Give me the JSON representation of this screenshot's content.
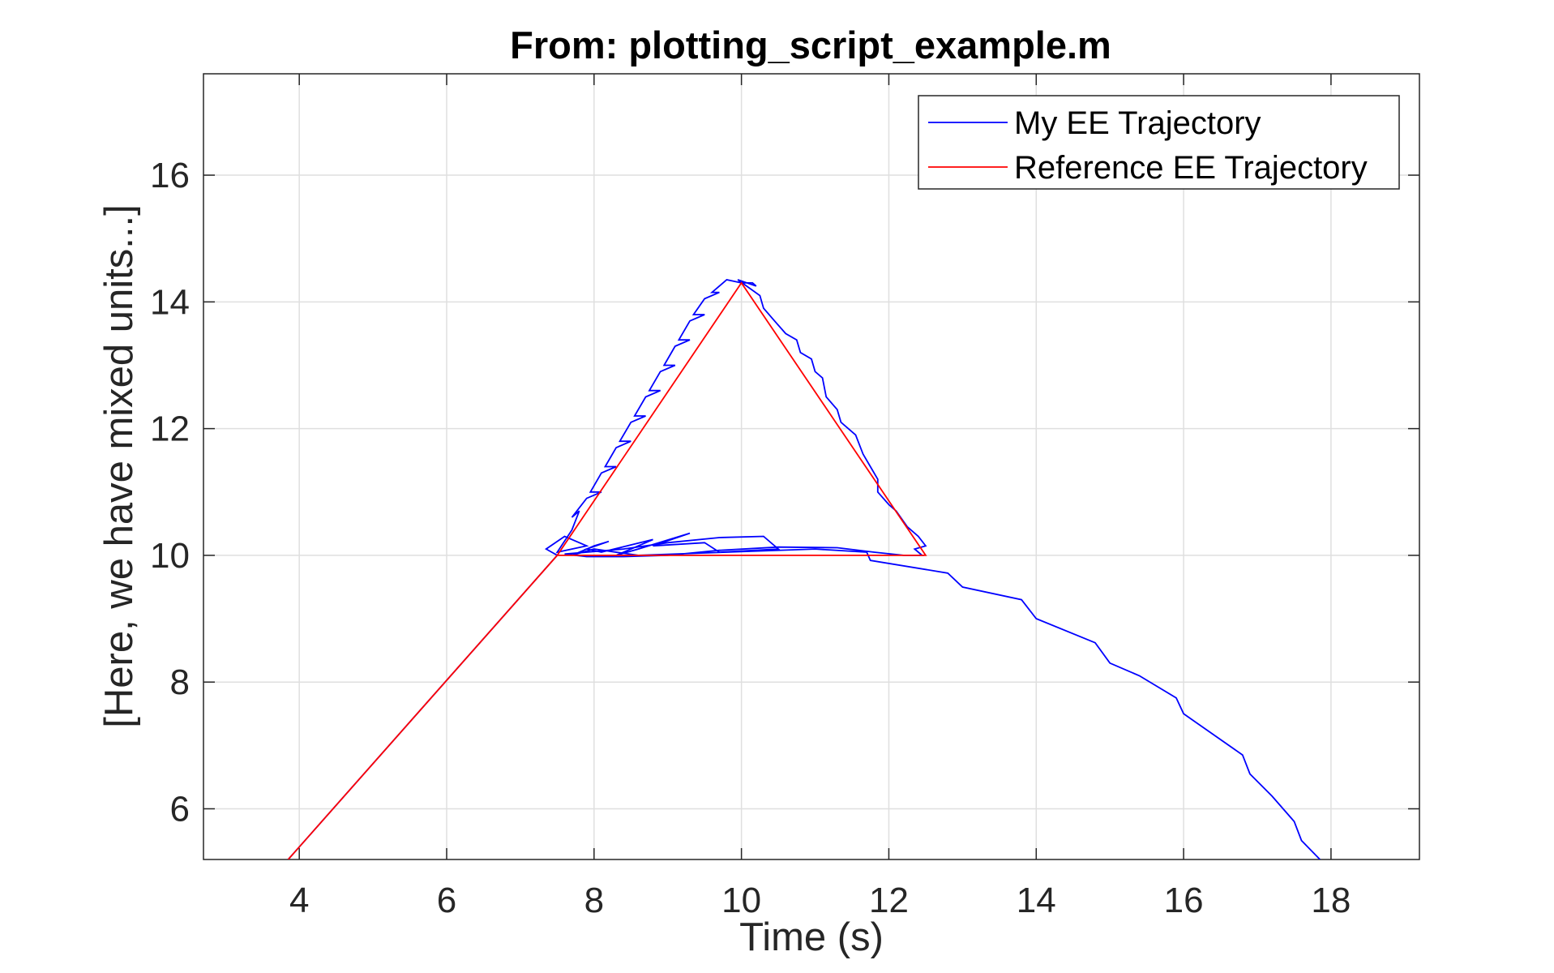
{
  "chart_data": {
    "type": "line",
    "title": "From: plotting_script_example.m",
    "xlabel": "Time (s)",
    "ylabel": "[Here, we have mixed units...]",
    "xlim": [
      2.7,
      19.2
    ],
    "ylim": [
      5.2,
      17.6
    ],
    "xticks": [
      4,
      6,
      8,
      10,
      12,
      14,
      16,
      18
    ],
    "yticks": [
      6,
      8,
      10,
      12,
      14,
      16
    ],
    "grid": true,
    "legend_position": "top-right",
    "series": [
      {
        "name": "My EE Trajectory",
        "color": "#0000ff",
        "points": [
          [
            3.85,
            5.2
          ],
          [
            7.5,
            10.0
          ],
          [
            7.35,
            10.1
          ],
          [
            7.6,
            10.3
          ],
          [
            7.9,
            10.15
          ],
          [
            7.5,
            10.05
          ],
          [
            7.7,
            10.4
          ],
          [
            7.8,
            10.7
          ],
          [
            7.7,
            10.6
          ],
          [
            7.9,
            10.9
          ],
          [
            8.1,
            11.0
          ],
          [
            7.95,
            11.0
          ],
          [
            8.1,
            11.3
          ],
          [
            8.3,
            11.4
          ],
          [
            8.15,
            11.4
          ],
          [
            8.3,
            11.7
          ],
          [
            8.5,
            11.8
          ],
          [
            8.35,
            11.8
          ],
          [
            8.5,
            12.1
          ],
          [
            8.7,
            12.2
          ],
          [
            8.55,
            12.2
          ],
          [
            8.7,
            12.5
          ],
          [
            8.9,
            12.6
          ],
          [
            8.75,
            12.6
          ],
          [
            8.9,
            12.9
          ],
          [
            9.1,
            13.0
          ],
          [
            8.95,
            13.0
          ],
          [
            9.1,
            13.3
          ],
          [
            9.3,
            13.4
          ],
          [
            9.15,
            13.4
          ],
          [
            9.3,
            13.7
          ],
          [
            9.5,
            13.8
          ],
          [
            9.35,
            13.8
          ],
          [
            9.5,
            14.05
          ],
          [
            9.7,
            14.15
          ],
          [
            9.6,
            14.15
          ],
          [
            9.8,
            14.35
          ],
          [
            10.0,
            14.3
          ],
          [
            10.15,
            14.3
          ],
          [
            10.2,
            14.25
          ],
          [
            9.95,
            14.35
          ],
          [
            10.25,
            14.1
          ],
          [
            10.3,
            13.9
          ],
          [
            10.45,
            13.7
          ],
          [
            10.6,
            13.5
          ],
          [
            10.75,
            13.4
          ],
          [
            10.8,
            13.2
          ],
          [
            10.95,
            13.1
          ],
          [
            11.0,
            12.9
          ],
          [
            11.1,
            12.8
          ],
          [
            11.15,
            12.5
          ],
          [
            11.3,
            12.3
          ],
          [
            11.35,
            12.1
          ],
          [
            11.55,
            11.9
          ],
          [
            11.65,
            11.6
          ],
          [
            11.75,
            11.4
          ],
          [
            11.85,
            11.2
          ],
          [
            11.85,
            11.0
          ],
          [
            12.0,
            10.8
          ],
          [
            12.1,
            10.7
          ],
          [
            12.25,
            10.45
          ],
          [
            12.4,
            10.3
          ],
          [
            12.5,
            10.15
          ],
          [
            12.35,
            10.1
          ],
          [
            12.45,
            10.0
          ],
          [
            12.2,
            10.0
          ],
          [
            11.8,
            10.05
          ],
          [
            11.3,
            10.12
          ],
          [
            10.5,
            10.13
          ],
          [
            9.7,
            10.08
          ],
          [
            9.0,
            10.0
          ],
          [
            8.4,
            9.98
          ],
          [
            7.9,
            9.98
          ],
          [
            7.6,
            10.02
          ],
          [
            8.4,
            10.1
          ],
          [
            9.0,
            10.2
          ],
          [
            9.7,
            10.28
          ],
          [
            10.3,
            10.3
          ],
          [
            10.5,
            10.1
          ],
          [
            9.7,
            10.05
          ],
          [
            9.5,
            10.2
          ],
          [
            8.8,
            10.15
          ],
          [
            9.3,
            10.35
          ],
          [
            8.6,
            10.1
          ],
          [
            8.3,
            10.0
          ],
          [
            8.8,
            10.25
          ],
          [
            8.1,
            10.05
          ],
          [
            7.9,
            10.1
          ],
          [
            8.2,
            10.22
          ],
          [
            8.0,
            10.15
          ],
          [
            7.7,
            10.0
          ],
          [
            8.0,
            10.1
          ],
          [
            8.6,
            10.0
          ],
          [
            11.0,
            10.1
          ],
          [
            11.7,
            10.05
          ],
          [
            11.75,
            9.92
          ],
          [
            12.8,
            9.72
          ],
          [
            13.0,
            9.5
          ],
          [
            13.8,
            9.3
          ],
          [
            14.0,
            9.0
          ],
          [
            14.8,
            8.62
          ],
          [
            15.0,
            8.3
          ],
          [
            15.4,
            8.1
          ],
          [
            15.9,
            7.75
          ],
          [
            16.0,
            7.5
          ],
          [
            16.8,
            6.85
          ],
          [
            16.9,
            6.55
          ],
          [
            17.2,
            6.2
          ],
          [
            17.5,
            5.8
          ],
          [
            17.6,
            5.5
          ],
          [
            17.85,
            5.2
          ]
        ]
      },
      {
        "name": "Reference EE Trajectory",
        "color": "#ff0000",
        "points": [
          [
            3.85,
            5.2
          ],
          [
            7.5,
            10.0
          ],
          [
            10.0,
            14.3
          ],
          [
            12.5,
            10.0
          ],
          [
            7.5,
            10.0
          ]
        ]
      }
    ]
  }
}
